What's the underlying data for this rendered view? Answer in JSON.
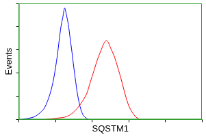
{
  "chart_data": {
    "type": "line",
    "xlabel": "SQSTM1",
    "ylabel": "Events",
    "xlim": [
      0,
      100
    ],
    "ylim": [
      0,
      100
    ],
    "xticks": [
      0,
      20,
      40,
      60,
      80,
      100
    ],
    "yticks": [
      0,
      20,
      40,
      60,
      80,
      100
    ],
    "tick_labels": false,
    "grid": false,
    "series": [
      {
        "color": "#0000ff",
        "x": [
          2,
          5,
          8,
          11,
          14,
          17,
          19,
          21,
          22,
          23,
          24,
          25,
          26,
          27,
          28,
          29,
          30,
          31,
          32,
          33,
          34,
          35,
          36,
          38
        ],
        "values": [
          0,
          1,
          2,
          5,
          10,
          22,
          35,
          55,
          68,
          80,
          88,
          96,
          90,
          82,
          70,
          58,
          45,
          33,
          22,
          14,
          8,
          4,
          2,
          0
        ]
      },
      {
        "color": "#ff0000",
        "x": [
          15,
          20,
          25,
          28,
          31,
          34,
          37,
          39,
          41,
          43,
          45,
          46,
          47,
          48,
          49,
          50,
          52,
          54,
          56,
          58,
          60,
          62,
          64,
          66
        ],
        "values": [
          0,
          1,
          2,
          4,
          8,
          14,
          22,
          32,
          42,
          52,
          60,
          64,
          67,
          68,
          66,
          62,
          55,
          45,
          34,
          22,
          12,
          6,
          2,
          0
        ]
      }
    ]
  }
}
